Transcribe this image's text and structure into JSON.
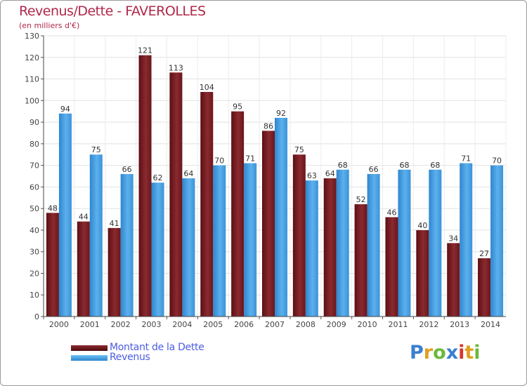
{
  "title": "Revenus/Dette - FAVEROLLES",
  "subtitle": "(en milliers d'€)",
  "legend": {
    "debt_label": "Montant de la Dette",
    "revenue_label": "Revenus"
  },
  "logo": {
    "text": "Proxiti",
    "letters": [
      "P",
      "r",
      "o",
      "x",
      "i",
      "t",
      "i"
    ]
  },
  "colors": {
    "debt": "#7d1f24",
    "revenue": "#4aa3e6",
    "title": "#b0284b",
    "legend_text": "#4a5de0",
    "logo": [
      "#3a7fd0",
      "#e0a020",
      "#6cb83c",
      "#3a7fd0",
      "#d8342c",
      "#e0a020",
      "#6cb83c"
    ]
  },
  "chart_data": {
    "type": "bar",
    "title": "Revenus/Dette - FAVEROLLES",
    "subtitle": "(en milliers d'€)",
    "categories": [
      "2000",
      "2001",
      "2002",
      "2003",
      "2004",
      "2005",
      "2006",
      "2007",
      "2008",
      "2009",
      "2010",
      "2011",
      "2012",
      "2013",
      "2014"
    ],
    "series": [
      {
        "name": "Montant de la Dette",
        "values": [
          48,
          44,
          41,
          121,
          113,
          104,
          95,
          86,
          75,
          64,
          52,
          46,
          40,
          34,
          27
        ]
      },
      {
        "name": "Revenus",
        "values": [
          94,
          75,
          66,
          62,
          64,
          70,
          71,
          92,
          63,
          68,
          66,
          68,
          68,
          71,
          70
        ]
      }
    ],
    "ylim": [
      0,
      130
    ],
    "yticks": [
      0,
      10,
      20,
      30,
      40,
      50,
      60,
      70,
      80,
      90,
      100,
      110,
      120,
      130
    ],
    "grid": true,
    "legend_position": "bottom-left"
  }
}
